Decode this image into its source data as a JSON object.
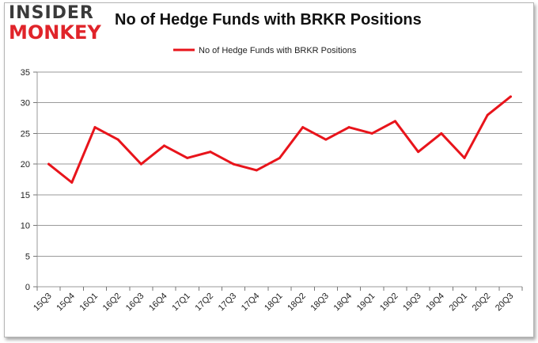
{
  "brand": {
    "top": "INSIDER",
    "bottom": "MONKEY",
    "accent": "#e0242a"
  },
  "chart_data": {
    "type": "line",
    "title": "No of Hedge Funds with BRKR Positions",
    "categories": [
      "15Q3",
      "15Q4",
      "16Q1",
      "16Q2",
      "16Q3",
      "16Q4",
      "17Q1",
      "17Q2",
      "17Q3",
      "17Q4",
      "18Q1",
      "18Q2",
      "18Q3",
      "18Q4",
      "19Q1",
      "19Q2",
      "19Q3",
      "19Q4",
      "20Q1",
      "20Q2",
      "20Q3"
    ],
    "series": [
      {
        "name": "No of Hedge Funds with BRKR Positions",
        "color": "#e8141b",
        "values": [
          20,
          17,
          26,
          24,
          20,
          23,
          21,
          22,
          20,
          19,
          21,
          26,
          24,
          26,
          25,
          27,
          22,
          25,
          21,
          28,
          31
        ]
      }
    ],
    "ylim": [
      0,
      35
    ],
    "yticks": [
      0,
      5,
      10,
      15,
      20,
      25,
      30,
      35
    ],
    "xlabel": "",
    "ylabel": "",
    "grid": true,
    "legend": "top-center"
  }
}
